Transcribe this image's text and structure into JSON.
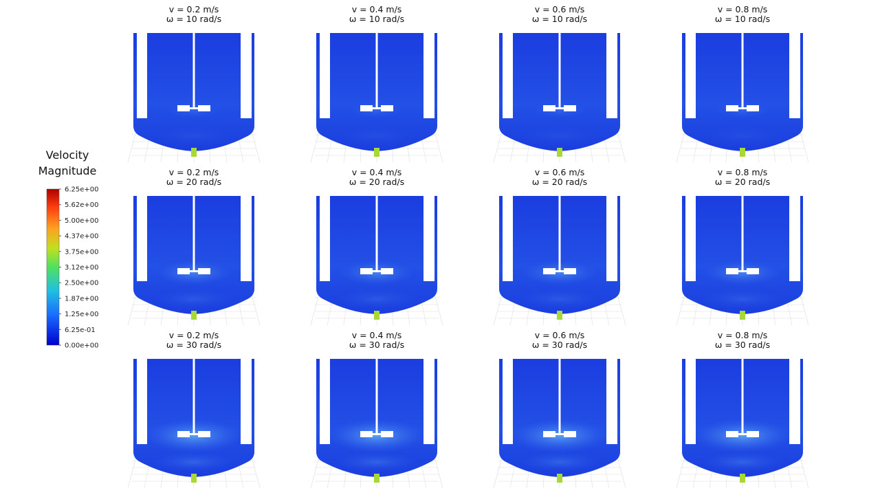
{
  "colorbar": {
    "title": "Velocity Magnitude",
    "ticks": [
      "6.25e+00",
      "5.62e+00",
      "5.00e+00",
      "4.37e+00",
      "3.75e+00",
      "3.12e+00",
      "2.50e+00",
      "1.87e+00",
      "1.25e+00",
      "6.25e-01",
      "0.00e+00"
    ]
  },
  "panels": [
    {
      "velocity": "v = 0.2 m/s",
      "omega": "ω = 10 rad/s"
    },
    {
      "velocity": "v = 0.4 m/s",
      "omega": "ω = 10 rad/s"
    },
    {
      "velocity": "v = 0.6 m/s",
      "omega": "ω = 10 rad/s"
    },
    {
      "velocity": "v = 0.8 m/s",
      "omega": "ω = 10 rad/s"
    },
    {
      "velocity": "v = 0.2 m/s",
      "omega": "ω = 20 rad/s"
    },
    {
      "velocity": "v = 0.4 m/s",
      "omega": "ω = 20 rad/s"
    },
    {
      "velocity": "v = 0.6 m/s",
      "omega": "ω = 20 rad/s"
    },
    {
      "velocity": "v = 0.8 m/s",
      "omega": "ω = 20 rad/s"
    },
    {
      "velocity": "v = 0.2 m/s",
      "omega": "ω = 30 rad/s"
    },
    {
      "velocity": "v = 0.4 m/s",
      "omega": "ω = 30 rad/s"
    },
    {
      "velocity": "v = 0.6 m/s",
      "omega": "ω = 30 rad/s"
    },
    {
      "velocity": "v = 0.8 m/s",
      "omega": "ω = 30 rad/s"
    }
  ]
}
